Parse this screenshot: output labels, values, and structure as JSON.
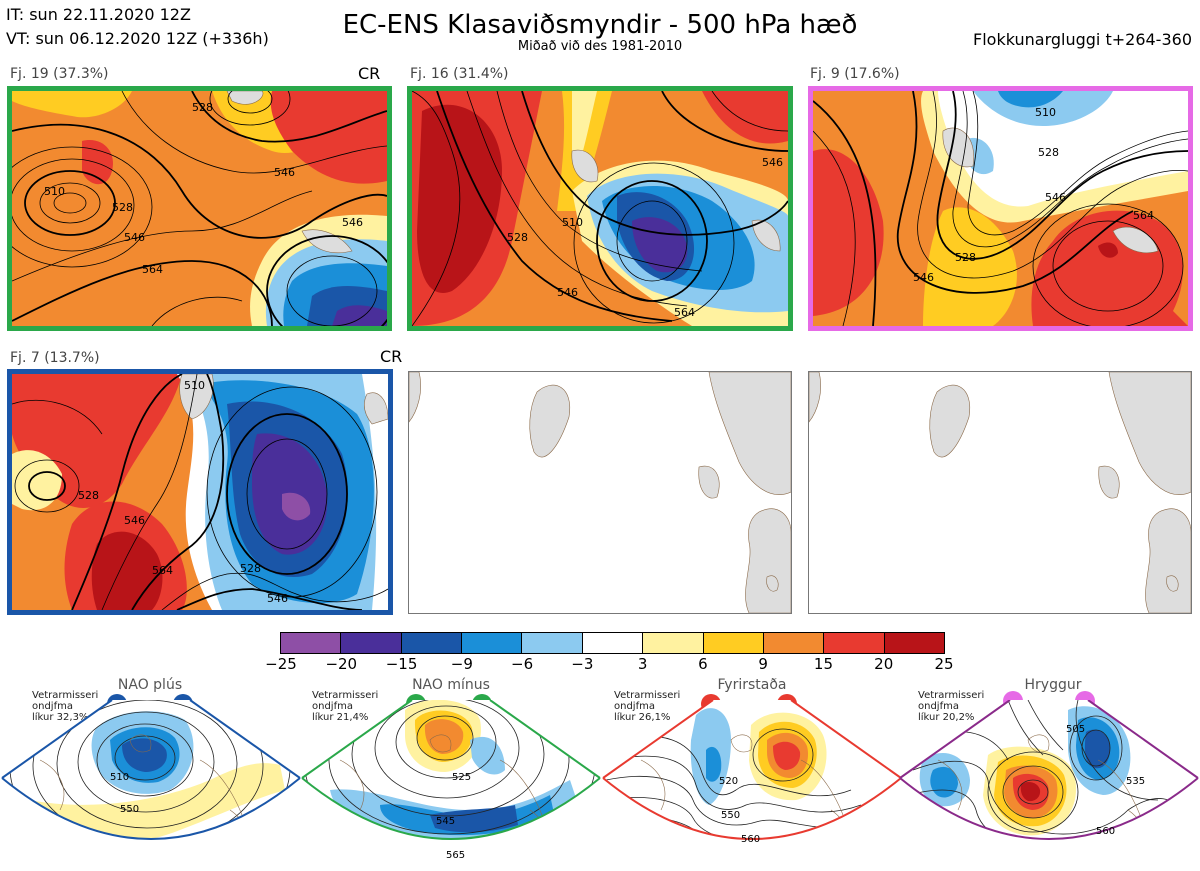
{
  "header": {
    "it_line": "IT: sun 22.11.2020 12Z",
    "vt_line": "VT: sun 06.12.2020 12Z  (+336h)",
    "title": "EC-ENS Klasaviðsmyndir - 500 hPa hæð",
    "subtitle": "Miðað við des 1981-2010",
    "window": "Flokkunargluggi t+264-360"
  },
  "panels": [
    {
      "label": "Fj. 19 (37.3%)",
      "tag": "CR",
      "border": "#2aa84a",
      "contours": [
        "528",
        "546",
        "564",
        "546",
        "528",
        "510",
        "546"
      ]
    },
    {
      "label": "Fj. 16 (31.4%)",
      "tag": "",
      "border": "#2aa84a",
      "contours": [
        "528",
        "510",
        "546",
        "546",
        "564"
      ]
    },
    {
      "label": "Fj. 9 (17.6%)",
      "tag": "",
      "border": "#e66ae6",
      "contours": [
        "510",
        "528",
        "546",
        "564",
        "546",
        "528"
      ]
    },
    {
      "label": "Fj. 7 (13.7%)",
      "tag": "CR",
      "border": "#1a56a8",
      "contours": [
        "528",
        "546",
        "564",
        "528",
        "546",
        "510"
      ]
    }
  ],
  "colorbar": {
    "ticks": [
      "−25",
      "−20",
      "−15",
      "−9",
      "−6",
      "−3",
      "3",
      "6",
      "9",
      "15",
      "20",
      "25"
    ],
    "colors": [
      "#8e4fa6",
      "#4a2f9a",
      "#1a56a8",
      "#1b8fd8",
      "#8ccaf0",
      "#ffffff",
      "#fff2a0",
      "#ffcc22",
      "#f28a30",
      "#e83a30",
      "#b81418"
    ]
  },
  "regimes": [
    {
      "title": "NAO plús",
      "stat_lines": [
        "Vetrarmisseri",
        "ondjfma",
        "líkur 32,3%"
      ],
      "color": "#1a56a8",
      "contours": [
        "510",
        "550"
      ]
    },
    {
      "title": "NAO mínus",
      "stat_lines": [
        "Vetrarmisseri",
        "ondjfma",
        "líkur 21,4%"
      ],
      "color": "#2aa84a",
      "contours": [
        "525",
        "545",
        "565"
      ]
    },
    {
      "title": "Fyrirstaða",
      "stat_lines": [
        "Vetrarmisseri",
        "ondjfma",
        "líkur 26,1%"
      ],
      "color": "#e83a30",
      "contours": [
        "520",
        "550",
        "560"
      ]
    },
    {
      "title": "Hryggur",
      "stat_lines": [
        "Vetrarmisseri",
        "ondjfma",
        "líkur 20,2%"
      ],
      "color": "#e66ae6",
      "contours": [
        "505",
        "535",
        "560"
      ]
    }
  ]
}
